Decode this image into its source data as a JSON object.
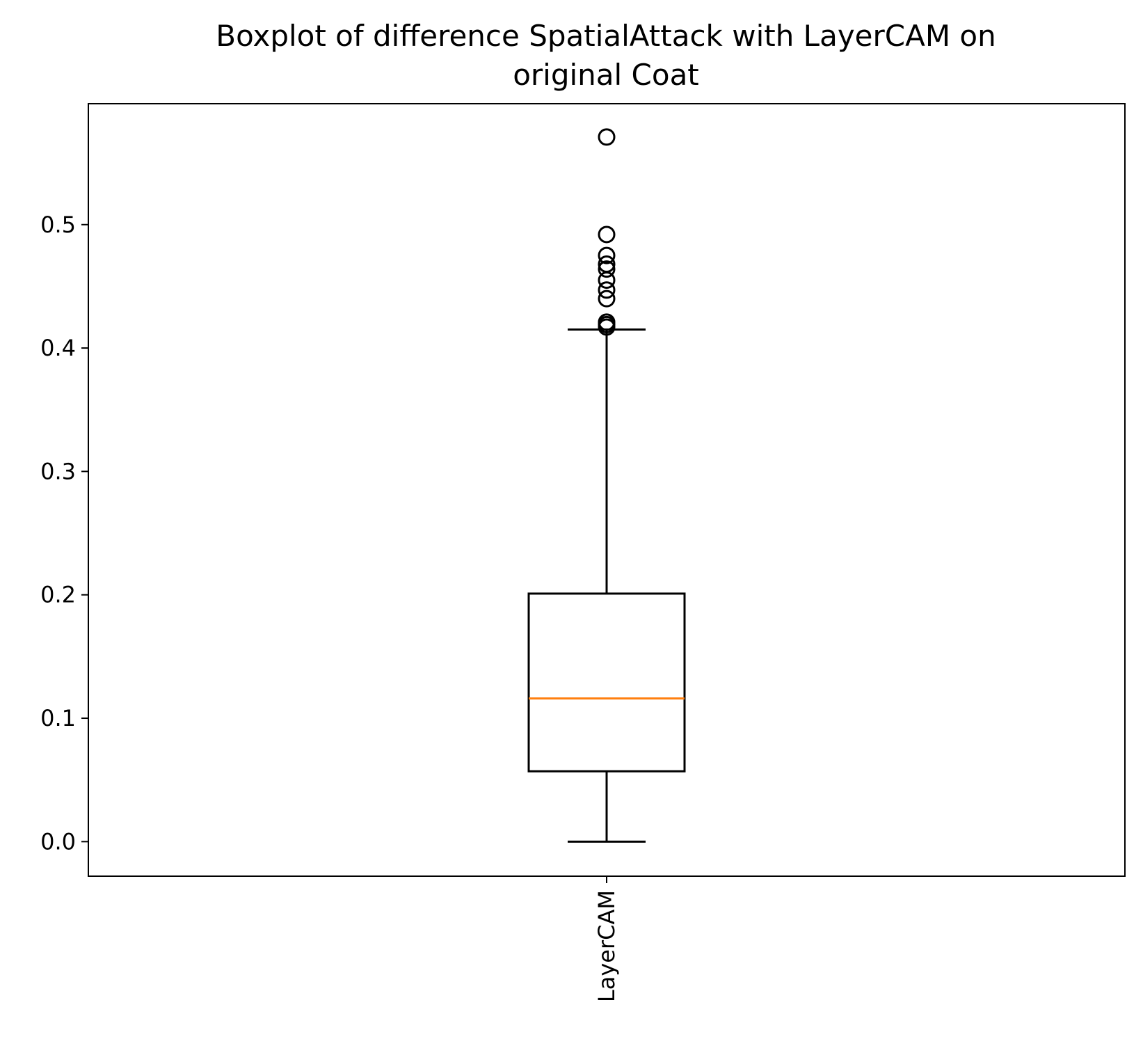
{
  "chart_data": {
    "type": "boxplot",
    "title_lines": [
      "Boxplot of difference SpatialAttack with LayerCAM on",
      "original Coat"
    ],
    "xlabel": "",
    "ylabel": "",
    "ylim": [
      -0.028,
      0.598
    ],
    "y_ticks": [
      0.0,
      0.1,
      0.2,
      0.3,
      0.4,
      0.5
    ],
    "y_tick_labels": [
      "0.0",
      "0.1",
      "0.2",
      "0.3",
      "0.4",
      "0.5"
    ],
    "categories": [
      "LayerCAM"
    ],
    "grid": false,
    "boxes": [
      {
        "label": "LayerCAM",
        "whisker_low": 0.0,
        "q1": 0.057,
        "median": 0.116,
        "q3": 0.201,
        "whisker_high": 0.415,
        "outliers": [
          0.417,
          0.419,
          0.421,
          0.44,
          0.447,
          0.455,
          0.464,
          0.468,
          0.475,
          0.492,
          0.571
        ]
      }
    ],
    "colors": {
      "box": "#000000",
      "median": "#ff7f0e",
      "outlier": "#000000"
    }
  }
}
